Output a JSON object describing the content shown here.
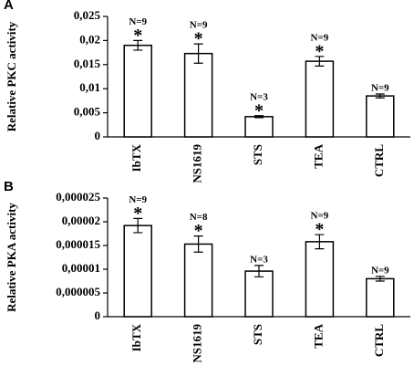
{
  "chart_data": [
    {
      "type": "bar",
      "panel": "A",
      "y_label": "Relative PKC activity",
      "categories": [
        "IbTX",
        "NS1619",
        "STS",
        "TEA",
        "CTRL"
      ],
      "values": [
        0.019,
        0.0173,
        0.0042,
        0.0157,
        0.0085
      ],
      "errors": [
        0.001,
        0.002,
        0.0002,
        0.001,
        0.0004
      ],
      "n_labels": [
        "N=9",
        "N=9",
        "N=3",
        "N=9",
        "N=9"
      ],
      "significance": [
        "*",
        "*",
        "*",
        "*",
        null
      ],
      "color": "#ffffff",
      "ylim": [
        0,
        0.025
      ],
      "yticks": [
        0,
        {
          "value": 0.005,
          "label": "0,005"
        },
        {
          "value": 0.01,
          "label": "0,01"
        },
        {
          "value": 0.015,
          "label": "0,015"
        },
        {
          "value": 0.02,
          "label": "0,02"
        },
        {
          "value": 0.025,
          "label": "0,025"
        }
      ]
    },
    {
      "type": "bar",
      "panel": "B",
      "y_label": "Relative PKA activity",
      "categories": [
        "IbTX",
        "NS1619",
        "STS",
        "TEA",
        "CTRL"
      ],
      "values": [
        1.92e-05,
        1.53e-05,
        9.6e-06,
        1.58e-05,
        8e-06
      ],
      "errors": [
        1.5e-06,
        1.7e-06,
        1.2e-06,
        1.5e-06,
        5e-07
      ],
      "n_labels": [
        "N=9",
        "N=8",
        "N=3",
        "N=9",
        "N=9"
      ],
      "significance": [
        "*",
        "*",
        null,
        "*",
        null
      ],
      "color": "#ffffff",
      "ylim": [
        0,
        2.5e-05
      ],
      "yticks": [
        0,
        {
          "value": 5e-06,
          "label": "0,000005"
        },
        {
          "value": 1e-05,
          "label": "0,00001"
        },
        {
          "value": 1.5e-05,
          "label": "0,000015"
        },
        {
          "value": 2e-05,
          "label": "0,00002"
        },
        {
          "value": 2.5e-05,
          "label": "0,000025"
        }
      ]
    }
  ]
}
